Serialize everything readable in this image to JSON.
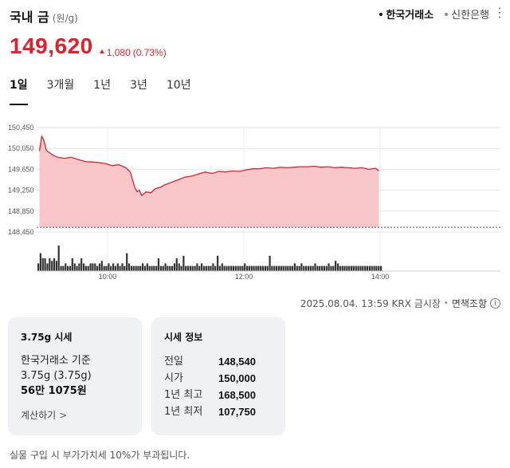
{
  "header": {
    "title": "국내 금",
    "unit": "(원/g)",
    "sources": [
      {
        "label": "한국거래소",
        "active": true
      },
      {
        "label": "신한은행",
        "active": false
      }
    ]
  },
  "price": {
    "current": "149,620",
    "change": "1,080",
    "change_pct": "(0.73%)",
    "direction": "up",
    "color": "#e0202d"
  },
  "tabs": [
    "1일",
    "3개월",
    "1년",
    "3년",
    "10년"
  ],
  "active_tab": 0,
  "chart_data": {
    "type": "area",
    "y_ticks": [
      "150,450",
      "150,050",
      "149,650",
      "149,250",
      "148,850",
      "148,450"
    ],
    "ylim": [
      148450,
      150450
    ],
    "x_ticks": [
      "10:00",
      "12:00",
      "14:00"
    ],
    "baseline": 148540,
    "line_color": "#e0202d",
    "fill_color": "#f9c7c9",
    "series": [
      {
        "x": [
          "09:00",
          "09:02",
          "09:04",
          "09:06",
          "09:08",
          "09:12",
          "09:16",
          "09:22",
          "09:28",
          "09:34",
          "09:40",
          "09:46",
          "09:52",
          "09:58",
          "10:04",
          "10:10",
          "10:16",
          "10:20",
          "10:24",
          "10:26",
          "10:28",
          "10:30",
          "10:34",
          "10:38",
          "10:42",
          "10:46",
          "10:50",
          "10:56",
          "11:02",
          "11:08",
          "11:14",
          "11:20",
          "11:26",
          "11:32",
          "11:38",
          "11:44",
          "11:50",
          "11:56",
          "12:02",
          "12:08",
          "12:14",
          "12:20",
          "12:26",
          "12:32",
          "12:38",
          "12:44",
          "12:50",
          "12:56",
          "13:02",
          "13:08",
          "13:14",
          "13:20",
          "13:26",
          "13:32",
          "13:38",
          "13:44",
          "13:50",
          "13:56",
          "13:59"
        ],
        "values": [
          150000,
          150280,
          150200,
          150020,
          149980,
          149920,
          149880,
          149860,
          149880,
          149840,
          149800,
          149790,
          149780,
          149760,
          149720,
          149740,
          149680,
          149600,
          149300,
          149220,
          149250,
          149150,
          149220,
          149200,
          149280,
          149300,
          149350,
          149400,
          149450,
          149500,
          149520,
          149560,
          149600,
          149570,
          149610,
          149600,
          149620,
          149610,
          149640,
          149660,
          149660,
          149680,
          149670,
          149690,
          149680,
          149690,
          149700,
          149700,
          149710,
          149690,
          149700,
          149680,
          149690,
          149680,
          149670,
          149680,
          149650,
          149670,
          149620
        ]
      }
    ],
    "volume": [
      3,
      7,
      5,
      5,
      3,
      5,
      4,
      5,
      4,
      10,
      2,
      2,
      3,
      2,
      2,
      5,
      3,
      2,
      3,
      5,
      3,
      2,
      2,
      3,
      3,
      3,
      2,
      3,
      4,
      2,
      2,
      3,
      2,
      3,
      2,
      3,
      2,
      3,
      2,
      7,
      3,
      2,
      2,
      2,
      2,
      2,
      3,
      2,
      3,
      2,
      2,
      2,
      2,
      5,
      2,
      2,
      3,
      2,
      2,
      2,
      3,
      5,
      3,
      2,
      6,
      2,
      2,
      2,
      2,
      2,
      3,
      2,
      3,
      2,
      2,
      2,
      2,
      3,
      2,
      6,
      2,
      3,
      2,
      2,
      2,
      2,
      2,
      2,
      2,
      2,
      2,
      3,
      2,
      2,
      2,
      2,
      2,
      2,
      2,
      2,
      2,
      2,
      6,
      2,
      2,
      2,
      2,
      2,
      2,
      2,
      2,
      2,
      2,
      3,
      2,
      2,
      3,
      2,
      2,
      2,
      2,
      2,
      3,
      2,
      2,
      2,
      2,
      2,
      3,
      2,
      2,
      4,
      3,
      2,
      2,
      2,
      2,
      2,
      2,
      2,
      2,
      2,
      2,
      2,
      2,
      2,
      2,
      2,
      2,
      2,
      2,
      2
    ]
  },
  "timestamp": {
    "text": "2025.08.04. 13:59 KRX 금시장",
    "separator": "•",
    "disclaimer": "면책조항",
    "info_icon": "i"
  },
  "card_market": {
    "title": "3.75g 시세",
    "basis": "한국거래소 기준",
    "weight": "3.75g (3.75g)",
    "amount": "56만 1075원",
    "calc_label": "계산하기",
    "calc_icon": ">"
  },
  "card_info": {
    "title": "시세 정보",
    "rows": [
      {
        "label": "전일",
        "value": "148,540"
      },
      {
        "label": "시가",
        "value": "150,000"
      },
      {
        "label": "1년 최고",
        "value": "168,500"
      },
      {
        "label": "1년 최저",
        "value": "107,750"
      }
    ]
  },
  "footnote": "실물 구입 시 부가가치세 10%가 부과됩니다."
}
